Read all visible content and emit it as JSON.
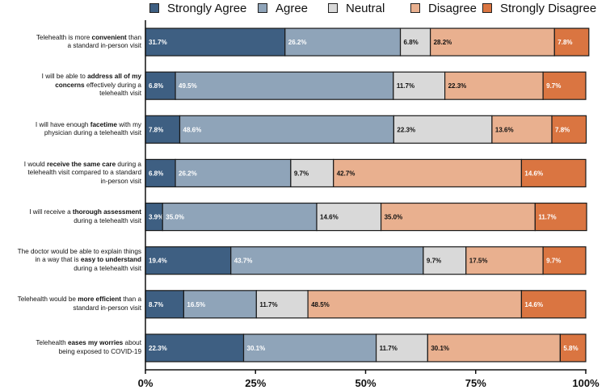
{
  "chart_data": {
    "type": "bar",
    "orientation": "horizontal",
    "stacked": true,
    "percent": true,
    "title": "",
    "xlabel": "",
    "ylabel": "",
    "xlim": [
      0,
      100
    ],
    "xticks": [
      "0%",
      "25%",
      "50%",
      "75%",
      "100%"
    ],
    "legend_position": "top",
    "series": [
      {
        "name": "Strongly Agree",
        "color": "#3e5f82",
        "values": [
          31.7,
          6.8,
          7.8,
          6.8,
          3.9,
          19.4,
          8.7,
          22.3
        ]
      },
      {
        "name": "Agree",
        "color": "#8fa4b9",
        "values": [
          26.2,
          49.5,
          48.6,
          26.2,
          35.0,
          43.7,
          16.5,
          30.1
        ]
      },
      {
        "name": "Neutral",
        "color": "#d9d9d9",
        "values": [
          6.8,
          11.7,
          22.3,
          9.7,
          14.6,
          9.7,
          11.7,
          11.7
        ]
      },
      {
        "name": "Disagree",
        "color": "#e9b08f",
        "values": [
          28.2,
          22.3,
          13.6,
          42.7,
          35.0,
          17.5,
          48.5,
          30.1
        ]
      },
      {
        "name": "Strongly Disagree",
        "color": "#da7541",
        "values": [
          7.8,
          9.7,
          7.8,
          14.6,
          11.7,
          9.7,
          14.6,
          5.8
        ]
      }
    ],
    "labels": [
      [
        "31.7%",
        "26.2%",
        "6.8%",
        "28.2%",
        "7.8%"
      ],
      [
        "6.8%",
        "49.5%",
        "11.7%",
        "22.3%",
        "9.7%"
      ],
      [
        "7.8%",
        "48.6%",
        "22.3%",
        "13.6%",
        "7.8%"
      ],
      [
        "6.8%",
        "26.2%",
        "9.7%",
        "42.7%",
        "14.6%"
      ],
      [
        "3.9%",
        "35.0%",
        "14.6%",
        "35.0%",
        "11.7%"
      ],
      [
        "19.4%",
        "43.7%",
        "9.7%",
        "17.5%",
        "9.7%"
      ],
      [
        "8.7%",
        "16.5%",
        "11.7%",
        "48.5%",
        "14.6%"
      ],
      [
        "22.3%",
        "30.1%",
        "11.7%",
        "30.1%",
        "5.8%"
      ]
    ],
    "categories": [
      [
        {
          "t": "Telehealth is more "
        },
        {
          "t": "convenient",
          "b": true
        },
        {
          "t": " than"
        },
        {
          "br": true
        },
        {
          "t": "a standard in-person visit"
        }
      ],
      [
        {
          "t": "I will be able to "
        },
        {
          "t": "address all of my",
          "b": true
        },
        {
          "br": true
        },
        {
          "t": "concerns",
          "b": true
        },
        {
          "t": " effectively during a"
        },
        {
          "br": true
        },
        {
          "t": "telehealth visit"
        }
      ],
      [
        {
          "t": "I will have enough "
        },
        {
          "t": "facetime",
          "b": true
        },
        {
          "t": " with my"
        },
        {
          "br": true
        },
        {
          "t": "physician during a telehealth visit"
        }
      ],
      [
        {
          "t": "I would "
        },
        {
          "t": "receive the same care",
          "b": true
        },
        {
          "t": " during a"
        },
        {
          "br": true
        },
        {
          "t": "telehealth visit compared to a standard"
        },
        {
          "br": true
        },
        {
          "t": "in-person visit"
        }
      ],
      [
        {
          "t": "I will receive a "
        },
        {
          "t": "thorough assessment",
          "b": true
        },
        {
          "br": true
        },
        {
          "t": "during a telehealth visit"
        }
      ],
      [
        {
          "t": "The doctor would be able to explain things"
        },
        {
          "br": true
        },
        {
          "t": "in a way that is "
        },
        {
          "t": "easy to understand",
          "b": true
        },
        {
          "br": true
        },
        {
          "t": "during a telehealth visit"
        }
      ],
      [
        {
          "t": "Telehealth would be "
        },
        {
          "t": "more efficient",
          "b": true
        },
        {
          "t": " than a"
        },
        {
          "br": true
        },
        {
          "t": "standard in-person visit"
        }
      ],
      [
        {
          "t": "Telehealth "
        },
        {
          "t": "eases my worries",
          "b": true
        },
        {
          "t": " about"
        },
        {
          "br": true
        },
        {
          "t": "being exposed to COVID-19"
        }
      ]
    ]
  }
}
